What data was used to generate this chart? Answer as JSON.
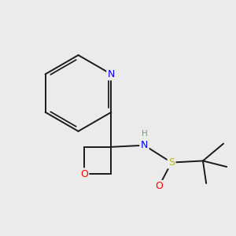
{
  "bg_color": "#ebebeb",
  "atom_colors": {
    "N": "#0000ff",
    "O": "#ff0000",
    "S": "#b8b800",
    "H": "#7a9a7a",
    "C": "#000000"
  },
  "bond_color": "#1a1a1a",
  "lw": 1.4
}
